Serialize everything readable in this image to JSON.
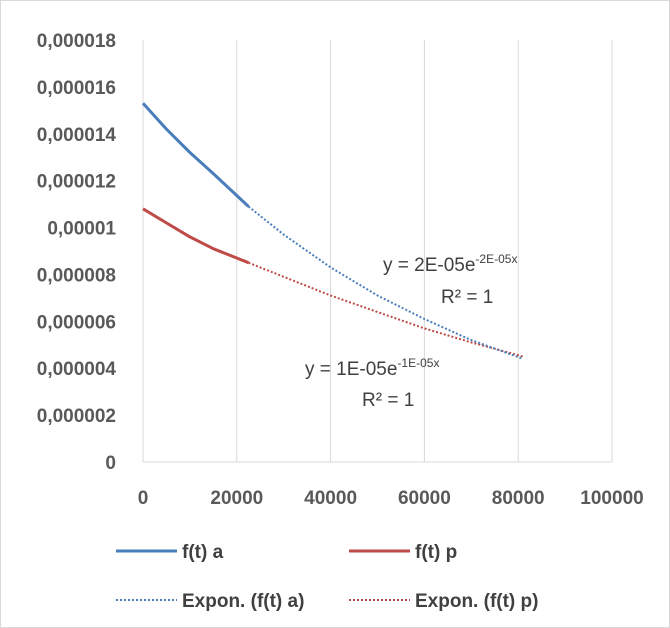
{
  "chart_data": {
    "type": "line",
    "title": "",
    "xlabel": "",
    "ylabel": "",
    "xlim": [
      0,
      100000
    ],
    "ylim": [
      0,
      1.8e-05
    ],
    "x_ticks": [
      0,
      20000,
      40000,
      60000,
      80000,
      100000
    ],
    "x_tick_labels": [
      "0",
      "20000",
      "40000",
      "60000",
      "80000",
      "100000"
    ],
    "y_ticks": [
      0,
      2e-06,
      4e-06,
      6e-06,
      8e-06,
      1e-05,
      1.2e-05,
      1.4e-05,
      1.6e-05,
      1.8e-05
    ],
    "y_tick_labels": [
      "0",
      "0,000002",
      "0,000004",
      "0,000006",
      "0,000008",
      "0,00001",
      "0,000012",
      "0,000014",
      "0,000016",
      "0,000018"
    ],
    "grid": {
      "vertical": true,
      "horizontal": false
    },
    "legend_position": "bottom",
    "series": [
      {
        "name": "f(t) a",
        "style": "solid",
        "color": "#4a7ebb",
        "x": [
          0,
          5000,
          10000,
          15000,
          22500
        ],
        "y": [
          1.53e-05,
          1.42e-05,
          1.32e-05,
          1.23e-05,
          1.09e-05
        ]
      },
      {
        "name": "f(t) p",
        "style": "solid",
        "color": "#be4b48",
        "x": [
          0,
          5000,
          10000,
          15000,
          22500
        ],
        "y": [
          1.08e-05,
          1.02e-05,
          9.6e-06,
          9.1e-06,
          8.5e-06
        ]
      },
      {
        "name": "Expon. (f(t) a)",
        "style": "dotted",
        "color": "#4a7ebb",
        "x": [
          22500,
          30000,
          40000,
          50000,
          60000,
          70000,
          81000
        ],
        "y": [
          1.09e-05,
          9.7e-06,
          8.3e-06,
          7.1e-06,
          6.1e-06,
          5.2e-06,
          4.4e-06
        ]
      },
      {
        "name": "Expon. (f(t) p)",
        "style": "dotted",
        "color": "#be4b48",
        "x": [
          22500,
          30000,
          40000,
          50000,
          60000,
          70000,
          81000
        ],
        "y": [
          8.5e-06,
          7.9e-06,
          7.1e-06,
          6.4e-06,
          5.7e-06,
          5.1e-06,
          4.5e-06
        ]
      }
    ],
    "annotations": [
      {
        "id": "eq_a",
        "main": "y = 2E-05e",
        "exp": "-2E-05x",
        "r2": "R² = 1"
      },
      {
        "id": "eq_p",
        "main": "y = 1E-05e",
        "exp": "-1E-05x",
        "r2": "R² = 1"
      }
    ]
  }
}
